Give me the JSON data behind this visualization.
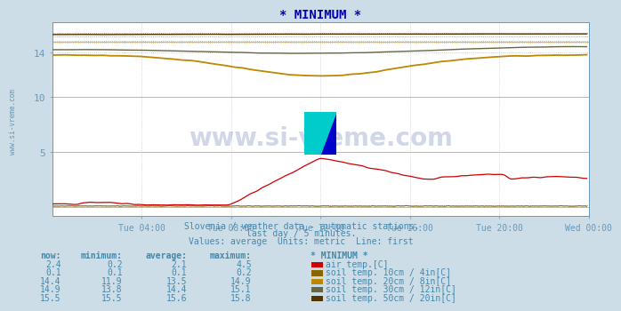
{
  "title": "* MINIMUM *",
  "bg_color": "#ccdde8",
  "plot_bg_color": "#ffffff",
  "x_labels": [
    "Tue 04:00",
    "Tue 08:00",
    "Tue 12:00",
    "Tue 16:00",
    "Tue 20:00",
    "Wed 00:00"
  ],
  "ylim": [
    -0.8,
    16.8
  ],
  "xlim": [
    0,
    288
  ],
  "subtitle1": "Slovenia / weather data - automatic stations.",
  "subtitle2": "last day / 5 minutes.",
  "subtitle3": "Values: average  Units: metric  Line: first",
  "watermark": "www.si-vreme.com",
  "table_headers": [
    "now:",
    "minimum:",
    "average:",
    "maximum:",
    "* MINIMUM *"
  ],
  "table_data": [
    [
      "2.4",
      "0.2",
      "2.1",
      "4.5",
      "#cc0000",
      "air temp.[C]"
    ],
    [
      "0.1",
      "0.1",
      "0.1",
      "0.2",
      "#886600",
      "soil temp. 10cm / 4in[C]"
    ],
    [
      "14.4",
      "11.9",
      "13.5",
      "14.9",
      "#bb8800",
      "soil temp. 20cm / 8in[C]"
    ],
    [
      "14.9",
      "13.8",
      "14.4",
      "15.1",
      "#666644",
      "soil temp. 30cm / 12in[C]"
    ],
    [
      "15.5",
      "15.5",
      "15.6",
      "15.8",
      "#553300",
      "soil temp. 50cm / 20in[C]"
    ]
  ],
  "series_colors": {
    "air_temp": "#cc0000",
    "soil_10cm": "#886600",
    "soil_20cm": "#bb8800",
    "soil_30cm": "#666644",
    "soil_50cm": "#553300"
  },
  "title_color": "#0000bb",
  "text_color": "#4488aa",
  "axis_color": "#6699bb",
  "watermark_color": "#1a3a8a",
  "hgrid_main_color": "#dd9999",
  "hgrid_dot_color": "#ddbbbb",
  "vgrid_color": "#bbbbdd"
}
